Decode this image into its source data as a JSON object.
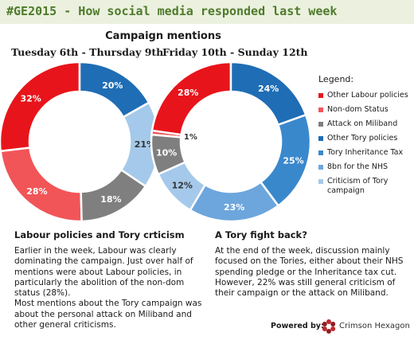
{
  "header": {
    "title": "#GE2015 - How social media responded last week"
  },
  "chart_section": {
    "title": "Campaign mentions"
  },
  "chart_data": [
    {
      "type": "pie",
      "title": "Tuesday 6th - Thursday 9th",
      "series": [
        {
          "name": "Other Labour policies",
          "value": 32,
          "label": "32%"
        },
        {
          "name": "Non-dom Status",
          "value": 28,
          "label": "28%"
        },
        {
          "name": "Attack on Miliband",
          "value": 18,
          "label": "18%"
        },
        {
          "name": "Criticism of Tory campaign",
          "value": 21,
          "label": "21%"
        },
        {
          "name": "Other Tory policies",
          "value": 20,
          "label": "20%"
        }
      ]
    },
    {
      "type": "pie",
      "title": "Friday 10th - Sunday 12th",
      "series": [
        {
          "name": "Other Labour policies",
          "value": 28,
          "label": "28%"
        },
        {
          "name": "Non-dom Status",
          "value": 1,
          "label": "1%"
        },
        {
          "name": "Attack on Miliband",
          "value": 10,
          "label": "10%"
        },
        {
          "name": "Criticism of Tory campaign",
          "value": 12,
          "label": "12%"
        },
        {
          "name": "8bn for the NHS",
          "value": 23,
          "label": "23%"
        },
        {
          "name": "Tory Inheritance Tax",
          "value": 25,
          "label": "25%"
        },
        {
          "name": "Other Tory policies",
          "value": 24,
          "label": "24%"
        }
      ]
    }
  ],
  "legend": {
    "title": "Legend:",
    "items": [
      {
        "label": "Other Labour policies",
        "color": "#e8141b"
      },
      {
        "label": "Non-dom Status",
        "color": "#f15558"
      },
      {
        "label": "Attack on Miliband",
        "color": "#7f7f7f"
      },
      {
        "label": "Other Tory policies",
        "color": "#1f6db5"
      },
      {
        "label": "Tory Inheritance Tax",
        "color": "#3a88cc"
      },
      {
        "label": "8bn for the NHS",
        "color": "#6ca6dc"
      },
      {
        "label": "Criticism of Tory campaign",
        "color": "#a5c9ea"
      }
    ]
  },
  "sections": [
    {
      "heading": "Labour policies and Tory crticism",
      "paragraphs": [
        "Earlier in the week, Labour was clearly dominating the campaign. Just over half of mentions were about Labour policies, in particularly the abolition of the non-dom status (28%).",
        "Most mentions about the Tory campaign was about the personal attack on Miliband and other general criticisms."
      ]
    },
    {
      "heading": "A Tory fight back?",
      "paragraphs": [
        "At the end of the week, discussion mainly focused on the Tories, either about their NHS spending pledge or the Inheritance tax cut. However, 22% was still general criticism of their campaign or the attack on Miliband."
      ]
    }
  ],
  "footer": {
    "powered_by": "Powered by:",
    "brand": "Crimson Hexagon"
  }
}
